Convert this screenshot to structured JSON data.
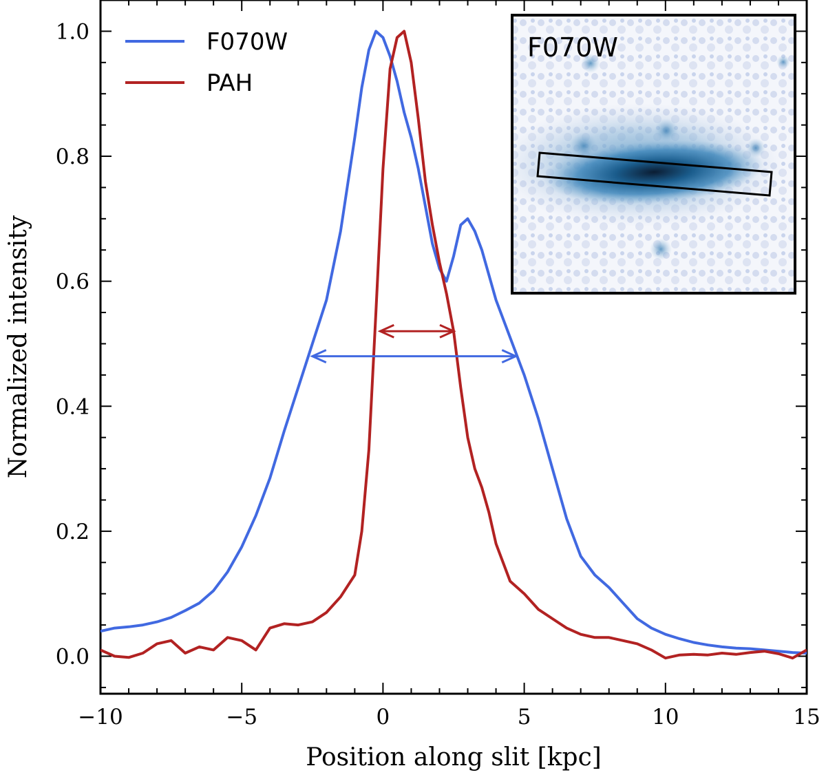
{
  "chart_data": {
    "type": "line",
    "title": "",
    "xlabel": "Position along slit [kpc]",
    "ylabel": "Normalized intensity",
    "xlim": [
      -10,
      15
    ],
    "ylim": [
      -0.06,
      1.05
    ],
    "xticks": [
      -10,
      -5,
      0,
      5,
      10,
      15
    ],
    "xtick_labels": [
      "−10",
      "−5",
      "0",
      "5",
      "10",
      "15"
    ],
    "yticks": [
      0.0,
      0.2,
      0.4,
      0.6,
      0.8,
      1.0
    ],
    "ytick_labels": [
      "0.0",
      "0.2",
      "0.4",
      "0.6",
      "0.8",
      "1.0"
    ],
    "legend_position": "top-left",
    "grid": false,
    "series": [
      {
        "name": "F070W",
        "color": "#4169e1",
        "x": [
          -10.0,
          -9.5,
          -9.0,
          -8.5,
          -8.0,
          -7.5,
          -7.0,
          -6.5,
          -6.0,
          -5.5,
          -5.0,
          -4.5,
          -4.0,
          -3.5,
          -3.0,
          -2.5,
          -2.0,
          -1.5,
          -1.0,
          -0.75,
          -0.5,
          -0.25,
          0.0,
          0.25,
          0.5,
          0.75,
          1.0,
          1.25,
          1.5,
          1.75,
          2.0,
          2.25,
          2.5,
          2.75,
          3.0,
          3.25,
          3.5,
          3.75,
          4.0,
          4.5,
          5.0,
          5.5,
          6.0,
          6.5,
          7.0,
          7.5,
          8.0,
          8.5,
          9.0,
          9.5,
          10.0,
          10.5,
          11.0,
          11.5,
          12.0,
          12.5,
          13.0,
          13.5,
          14.0,
          14.5,
          15.0
        ],
        "y": [
          0.04,
          0.045,
          0.047,
          0.05,
          0.055,
          0.062,
          0.073,
          0.085,
          0.105,
          0.135,
          0.175,
          0.225,
          0.285,
          0.36,
          0.43,
          0.5,
          0.57,
          0.68,
          0.83,
          0.91,
          0.97,
          1.0,
          0.99,
          0.96,
          0.92,
          0.87,
          0.83,
          0.78,
          0.72,
          0.66,
          0.62,
          0.6,
          0.64,
          0.69,
          0.7,
          0.68,
          0.65,
          0.61,
          0.57,
          0.51,
          0.45,
          0.38,
          0.3,
          0.22,
          0.16,
          0.13,
          0.11,
          0.085,
          0.06,
          0.045,
          0.035,
          0.028,
          0.022,
          0.018,
          0.015,
          0.013,
          0.012,
          0.01,
          0.008,
          0.006,
          0.005
        ]
      },
      {
        "name": "PAH",
        "color": "#b22222",
        "x": [
          -10.0,
          -9.5,
          -9.0,
          -8.5,
          -8.0,
          -7.5,
          -7.0,
          -6.5,
          -6.0,
          -5.5,
          -5.0,
          -4.5,
          -4.0,
          -3.5,
          -3.0,
          -2.5,
          -2.0,
          -1.5,
          -1.0,
          -0.75,
          -0.5,
          -0.25,
          0.0,
          0.25,
          0.5,
          0.75,
          1.0,
          1.25,
          1.5,
          1.75,
          2.0,
          2.25,
          2.5,
          2.75,
          3.0,
          3.25,
          3.5,
          3.75,
          4.0,
          4.5,
          5.0,
          5.5,
          6.0,
          6.5,
          7.0,
          7.5,
          8.0,
          8.5,
          9.0,
          9.5,
          10.0,
          10.5,
          11.0,
          11.5,
          12.0,
          12.5,
          13.0,
          13.5,
          14.0,
          14.5,
          15.0
        ],
        "y": [
          0.01,
          0.0,
          -0.002,
          0.005,
          0.02,
          0.025,
          0.005,
          0.015,
          0.01,
          0.03,
          0.025,
          0.01,
          0.045,
          0.052,
          0.05,
          0.055,
          0.07,
          0.095,
          0.13,
          0.2,
          0.33,
          0.55,
          0.78,
          0.94,
          0.99,
          1.0,
          0.95,
          0.86,
          0.76,
          0.69,
          0.63,
          0.58,
          0.52,
          0.43,
          0.35,
          0.3,
          0.27,
          0.23,
          0.18,
          0.12,
          0.1,
          0.075,
          0.06,
          0.045,
          0.035,
          0.03,
          0.03,
          0.025,
          0.02,
          0.01,
          -0.003,
          0.002,
          0.003,
          0.002,
          0.005,
          0.003,
          0.006,
          0.008,
          0.004,
          -0.003,
          0.01
        ]
      }
    ],
    "annotations": [
      {
        "type": "double-arrow",
        "color": "#4169e1",
        "x_start": -2.5,
        "x_end": 4.7,
        "y": 0.48
      },
      {
        "type": "double-arrow",
        "color": "#b22222",
        "x_start": -0.1,
        "x_end": 2.5,
        "y": 0.52
      }
    ],
    "inset": {
      "title": "F070W",
      "image_colormap": "blue",
      "content": "galaxy image with slit box"
    }
  }
}
